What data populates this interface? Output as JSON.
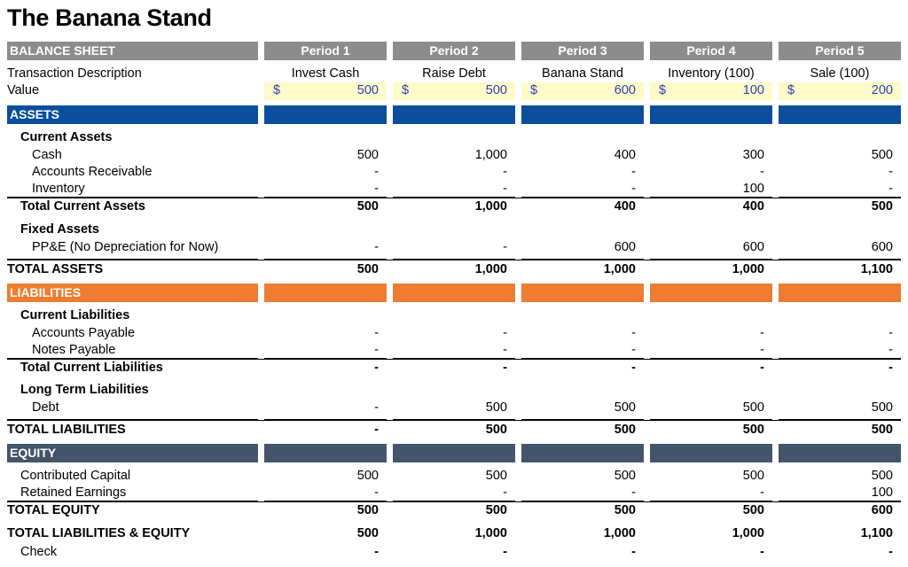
{
  "title": "The Banana Stand",
  "header": {
    "label": "BALANCE SHEET",
    "periods": [
      "Period 1",
      "Period 2",
      "Period 3",
      "Period 4",
      "Period 5"
    ]
  },
  "transaction": {
    "label": "Transaction Description",
    "values": [
      "Invest Cash",
      "Raise Debt",
      "Banana Stand",
      "Inventory (100)",
      "Sale (100)"
    ]
  },
  "value_row": {
    "label": "Value",
    "currency": "$",
    "values": [
      "500",
      "500",
      "600",
      "100",
      "200"
    ]
  },
  "assets": {
    "title": "ASSETS",
    "current_title": "Current Assets",
    "cash": {
      "label": "Cash",
      "values": [
        "500",
        "1,000",
        "400",
        "300",
        "500"
      ]
    },
    "ar": {
      "label": "Accounts Receivable",
      "values": [
        "-",
        "-",
        "-",
        "-",
        "-"
      ]
    },
    "inventory": {
      "label": "Inventory",
      "values": [
        "-",
        "-",
        "-",
        "100",
        "-"
      ]
    },
    "total_current": {
      "label": "Total Current Assets",
      "values": [
        "500",
        "1,000",
        "400",
        "400",
        "500"
      ]
    },
    "fixed_title": "Fixed Assets",
    "ppe": {
      "label": "PP&E (No Depreciation for Now)",
      "values": [
        "-",
        "-",
        "600",
        "600",
        "600"
      ]
    },
    "total": {
      "label": "TOTAL ASSETS",
      "values": [
        "500",
        "1,000",
        "1,000",
        "1,000",
        "1,100"
      ]
    }
  },
  "liabilities": {
    "title": "LIABILITIES",
    "current_title": "Current Liabilities",
    "ap": {
      "label": "Accounts Payable",
      "values": [
        "-",
        "-",
        "-",
        "-",
        "-"
      ]
    },
    "np": {
      "label": "Notes Payable",
      "values": [
        "-",
        "-",
        "-",
        "-",
        "-"
      ]
    },
    "total_current": {
      "label": "Total Current Liabilities",
      "values": [
        "-",
        "-",
        "-",
        "-",
        "-"
      ]
    },
    "lt_title": "Long Term Liabilities",
    "debt": {
      "label": "Debt",
      "values": [
        "-",
        "500",
        "500",
        "500",
        "500"
      ]
    },
    "total": {
      "label": "TOTAL LIABILITIES",
      "values": [
        "-",
        "500",
        "500",
        "500",
        "500"
      ]
    }
  },
  "equity": {
    "title": "EQUITY",
    "cc": {
      "label": "Contributed Capital",
      "values": [
        "500",
        "500",
        "500",
        "500",
        "500"
      ]
    },
    "re": {
      "label": "Retained Earnings",
      "values": [
        "-",
        "-",
        "-",
        "-",
        "100"
      ]
    },
    "total": {
      "label": "TOTAL EQUITY",
      "values": [
        "500",
        "500",
        "500",
        "500",
        "600"
      ]
    }
  },
  "total_le": {
    "label": "TOTAL LIABILITIES & EQUITY",
    "values": [
      "500",
      "1,000",
      "1,000",
      "1,000",
      "1,100"
    ]
  },
  "check": {
    "label": "Check",
    "values": [
      "-",
      "-",
      "-",
      "-",
      "-"
    ]
  },
  "colors": {
    "header_gray": "#8c8c8c",
    "assets_blue": "#0b4f9c",
    "liabilities_orange": "#ee7d31",
    "equity_slate": "#44546a",
    "input_fill": "#fdfbc9",
    "input_text": "#2a3fb5"
  }
}
